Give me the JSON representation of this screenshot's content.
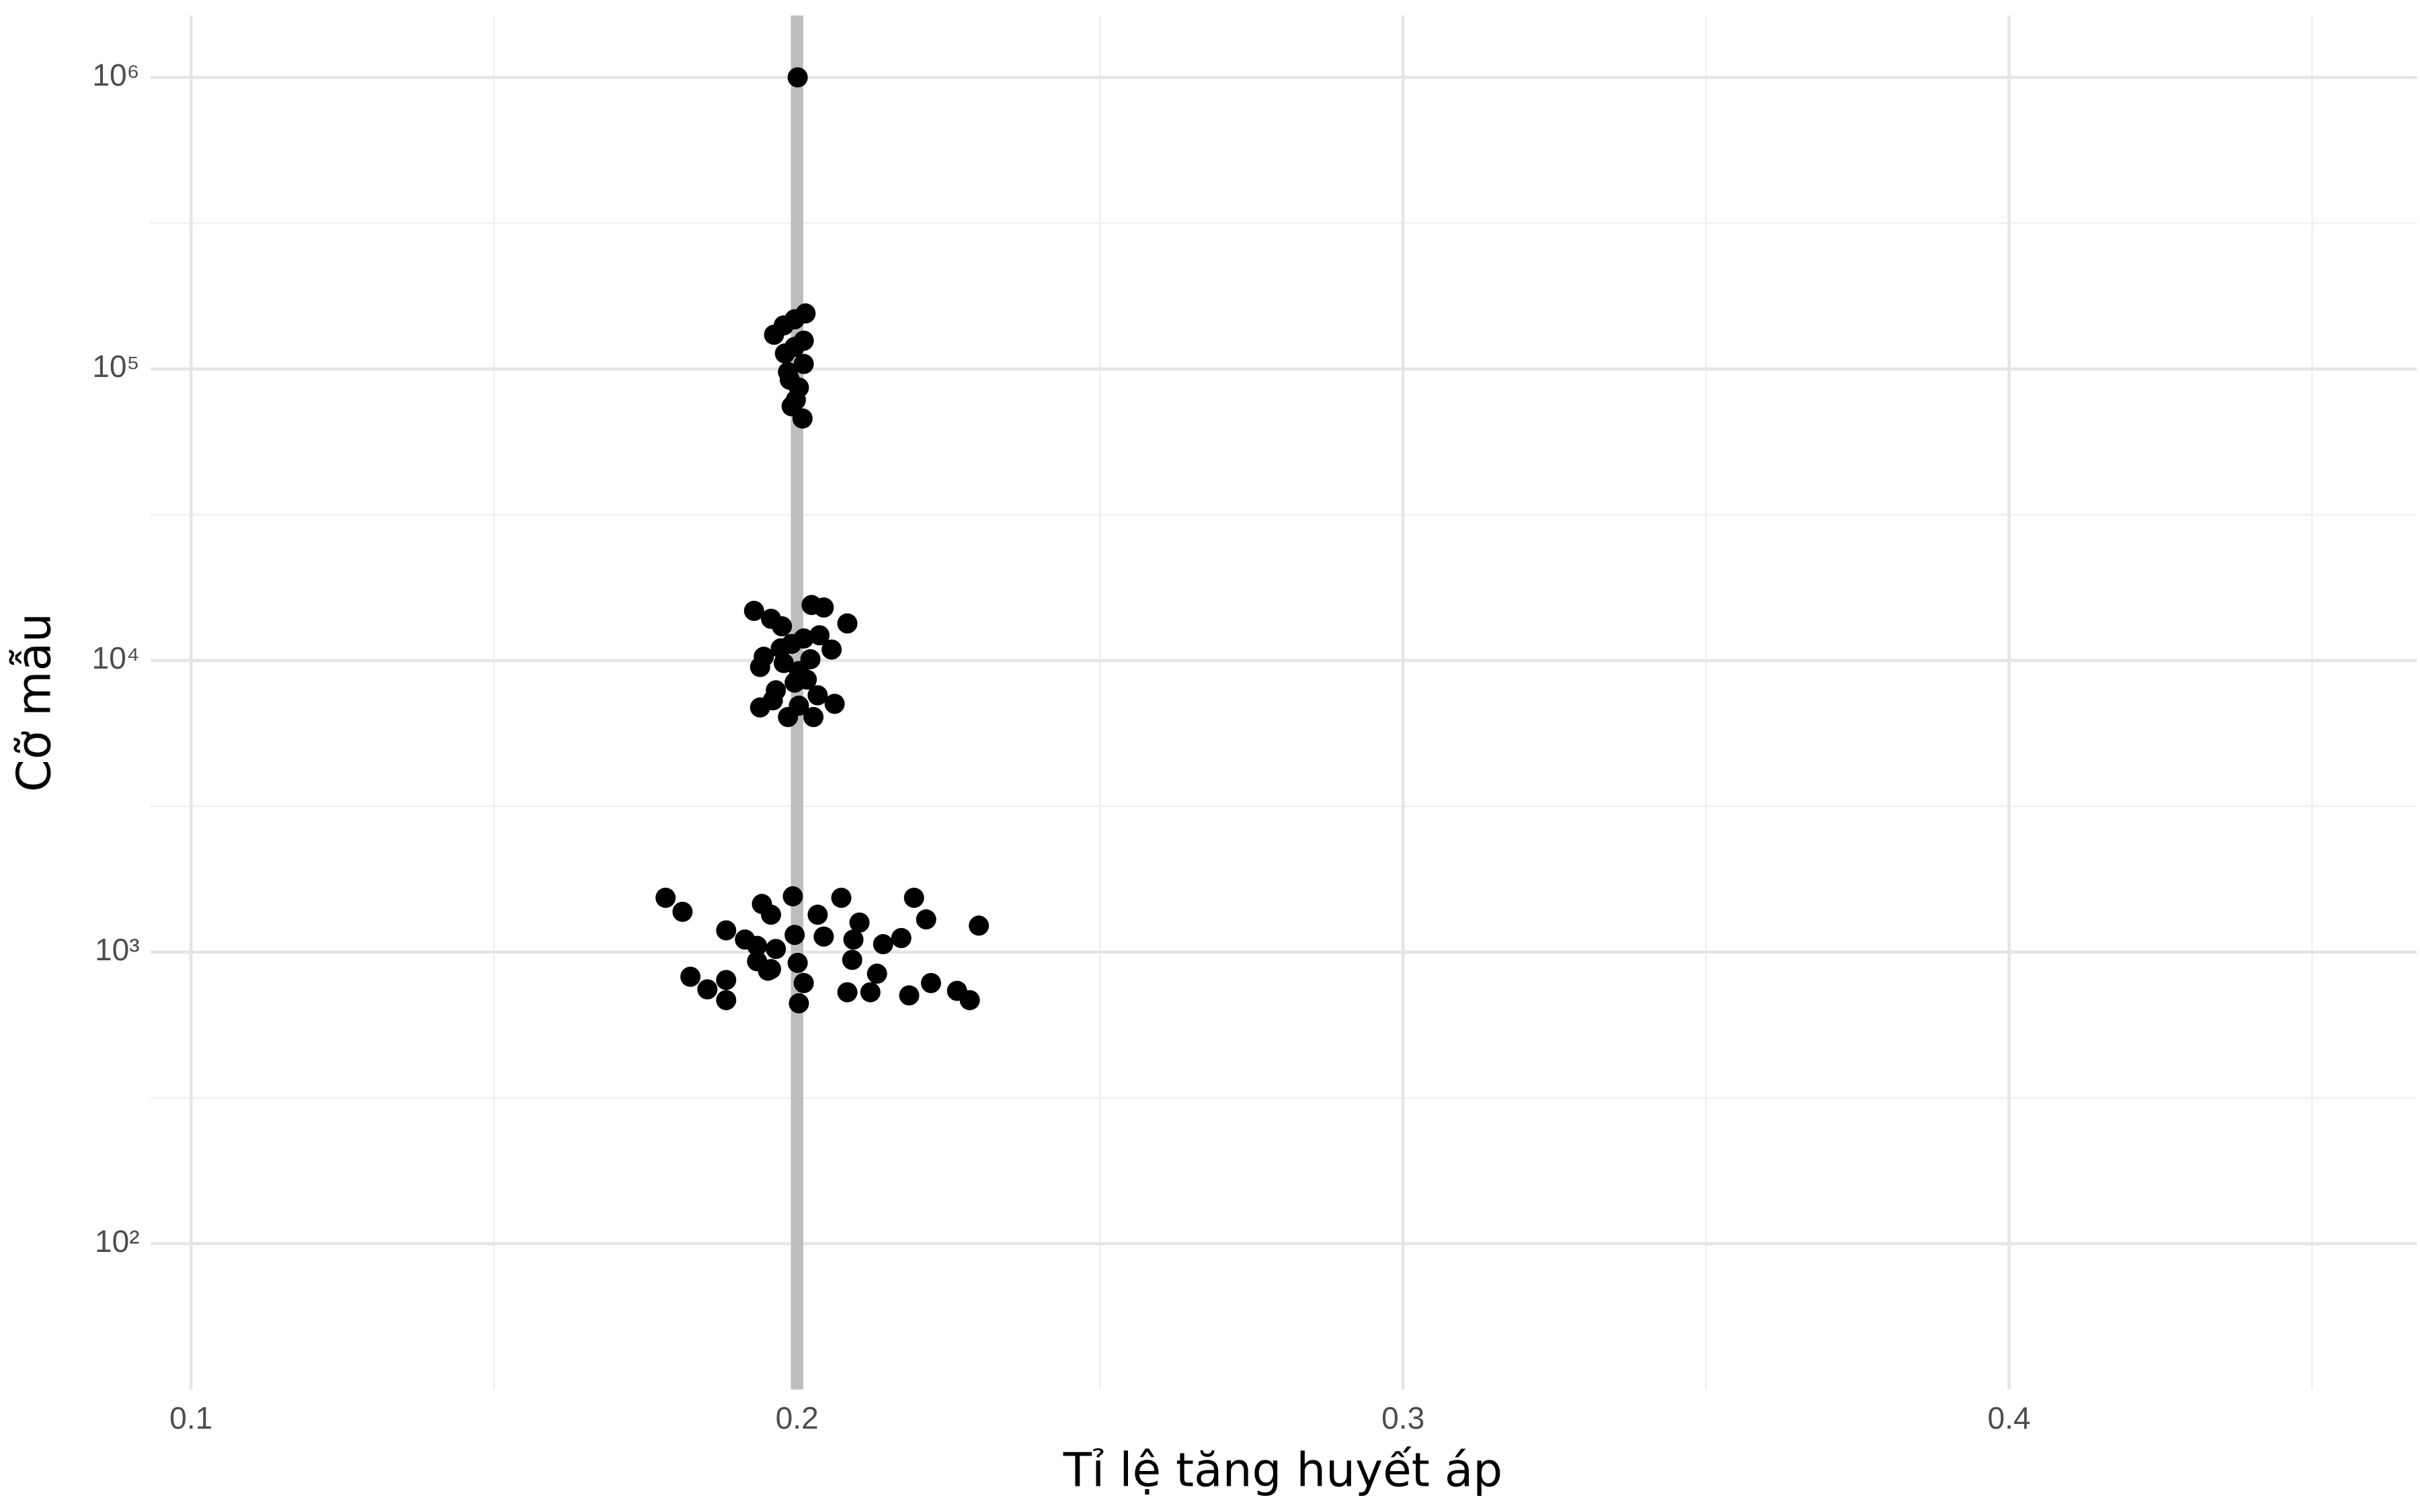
{
  "chart_data": {
    "type": "scatter",
    "x_label": "Tỉ lệ tăng huyết áp",
    "y_label": "Cỡ mẫu",
    "y_scale": "log",
    "grid": true,
    "color": "#000000",
    "vline": {
      "value": 0.2,
      "color": "#bdbdbd"
    },
    "xlim": [
      0.0933,
      0.4673
    ],
    "ylim": [
      31.6,
      1630000
    ],
    "xticks": [
      0.1,
      0.2,
      0.3,
      0.4
    ],
    "yticks": [
      {
        "value": 100,
        "label": "10²"
      },
      {
        "value": 1000,
        "label": "10³"
      },
      {
        "value": 10000,
        "label": "10⁴"
      },
      {
        "value": 100000,
        "label": "10⁵"
      },
      {
        "value": 1000000,
        "label": "10⁶"
      }
    ],
    "minor_xticks": [
      0.15,
      0.25,
      0.35,
      0.45
    ],
    "minor_yticks": [
      316.2,
      3162,
      31623,
      316228
    ],
    "x": [
      0.2001,
      0.2014,
      0.1962,
      0.1978,
      0.1996,
      0.2011,
      0.1985,
      0.2003,
      0.1991,
      0.2009,
      0.1998,
      0.1988,
      0.2011,
      0.198,
      0.1996,
      0.1929,
      0.1957,
      0.1975,
      0.2024,
      0.2044,
      0.2083,
      0.2057,
      0.2037,
      0.2011,
      0.1991,
      0.1945,
      0.1939,
      0.1978,
      0.2003,
      0.2016,
      0.1965,
      0.2034,
      0.2062,
      0.1939,
      0.1985,
      0.2027,
      0.2003,
      0.196,
      0.1996,
      0.1973,
      0.2022,
      0.1783,
      0.1811,
      0.1883,
      0.1942,
      0.1957,
      0.1993,
      0.2034,
      0.2073,
      0.2103,
      0.2193,
      0.2213,
      0.23,
      0.1914,
      0.1934,
      0.1996,
      0.2044,
      0.2093,
      0.2142,
      0.2172,
      0.1965,
      0.1934,
      0.1957,
      0.2001,
      0.2091,
      0.2132,
      0.1824,
      0.1852,
      0.1883,
      0.1883,
      0.1952,
      0.2011,
      0.2083,
      0.2121,
      0.2185,
      0.2221,
      0.2264,
      0.2285,
      0.2003
    ],
    "values": [
      1000000,
      155000,
      131000,
      141000,
      148000,
      125000,
      97600,
      86300,
      74500,
      67600,
      78300,
      91800,
      104000,
      113000,
      119000,
      14800,
      13900,
      13100,
      15500,
      15200,
      13400,
      10900,
      12200,
      11900,
      11400,
      10300,
      9500,
      9800,
      9200,
      8600,
      7900,
      7600,
      7100,
      6900,
      6400,
      6400,
      7000,
      7300,
      8400,
      11000,
      10100,
      1535,
      1374,
      1187,
      1462,
      1343,
      1553,
      1343,
      1535,
      1262,
      1535,
      1294,
      1232,
      1104,
      1050,
      1145,
      1130,
      1104,
      1064,
      1117,
      1025,
      930,
      874,
      918,
      940,
      843,
      823,
      745,
      802,
      684,
      863,
      783,
      728,
      728,
      710,
      783,
      736,
      684,
      667
    ]
  }
}
